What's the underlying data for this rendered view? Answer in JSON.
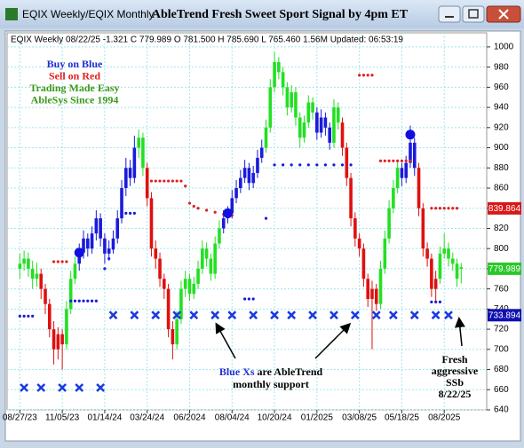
{
  "window": {
    "left_title": "EQIX Weekly/EQIX Monthly",
    "center_title": "AbleTrend Fresh Sweet Sport Signal by 4pm ET"
  },
  "chart_data": {
    "type": "candlestick",
    "info": "EQIX  Weekly 08/22/25 -1.321 C 779.989 O 781.500 H 785.690 L 765.460 1.56M Updated: 06:53:19",
    "legend_lines": [
      {
        "text": "Buy on Blue",
        "color": "#1f2fd0"
      },
      {
        "text": "Sell on Red",
        "color": "#e02020"
      },
      {
        "text": "Trading Made Easy",
        "color": "#3a9a1a"
      },
      {
        "text": "AbleSys Since 1994",
        "color": "#3a9a1a"
      }
    ],
    "annotations": {
      "support_lead": "Blue Xs",
      "support_rest": "are AbleTrend",
      "support_line2": "monthly support",
      "fresh": [
        "Fresh",
        "aggressive",
        "SSb",
        "8/22/25"
      ]
    },
    "signal_colors": {
      "b": "#1a1adb",
      "g": "#22e022",
      "r": "#e01010"
    },
    "signals": [
      "g",
      "g",
      "g",
      "g",
      "g",
      "r",
      "r",
      "r",
      "r",
      "r",
      "r",
      "g",
      "g",
      "g",
      "b",
      "b",
      "b",
      "b",
      "b",
      "b",
      "b",
      "b",
      "b",
      "b",
      "b",
      "b",
      "b",
      "b",
      "g",
      "g",
      "r",
      "r",
      "r",
      "r",
      "r",
      "r",
      "r",
      "g",
      "g",
      "g",
      "g",
      "g",
      "g",
      "g",
      "g",
      "g",
      "g",
      "g",
      "b",
      "b",
      "b",
      "b",
      "b",
      "b",
      "b",
      "b",
      "b",
      "b",
      "g",
      "g",
      "g",
      "g",
      "g",
      "g",
      "g",
      "g",
      "g",
      "g",
      "g",
      "g",
      "b",
      "b",
      "b",
      "b",
      "g",
      "g",
      "r",
      "r",
      "r",
      "r",
      "r",
      "r",
      "r",
      "r",
      "r",
      "g",
      "g",
      "g",
      "g",
      "g",
      "b",
      "b",
      "b",
      "b",
      "r",
      "r",
      "r",
      "r",
      "r",
      "g",
      "g",
      "g",
      "g",
      "g",
      "g"
    ],
    "ohlc": [
      [
        780,
        795,
        770,
        785
      ],
      [
        785,
        798,
        778,
        790
      ],
      [
        790,
        796,
        772,
        780
      ],
      [
        780,
        788,
        760,
        770
      ],
      [
        770,
        786,
        762,
        775
      ],
      [
        775,
        780,
        750,
        760
      ],
      [
        760,
        765,
        735,
        745
      ],
      [
        745,
        750,
        712,
        720
      ],
      [
        720,
        728,
        685,
        700
      ],
      [
        700,
        722,
        690,
        715
      ],
      [
        715,
        720,
        680,
        705
      ],
      [
        705,
        748,
        700,
        740
      ],
      [
        740,
        778,
        735,
        770
      ],
      [
        770,
        792,
        765,
        785
      ],
      [
        785,
        805,
        778,
        796
      ],
      [
        796,
        818,
        790,
        810
      ],
      [
        810,
        815,
        792,
        800
      ],
      [
        800,
        822,
        795,
        815
      ],
      [
        815,
        838,
        808,
        830
      ],
      [
        830,
        835,
        802,
        810
      ],
      [
        810,
        815,
        785,
        795
      ],
      [
        795,
        808,
        788,
        800
      ],
      [
        800,
        818,
        795,
        810
      ],
      [
        810,
        838,
        805,
        830
      ],
      [
        830,
        868,
        825,
        860
      ],
      [
        860,
        890,
        852,
        880
      ],
      [
        880,
        888,
        862,
        870
      ],
      [
        870,
        912,
        865,
        900
      ],
      [
        900,
        918,
        890,
        910
      ],
      [
        910,
        915,
        872,
        880
      ],
      [
        880,
        885,
        842,
        850
      ],
      [
        850,
        856,
        792,
        800
      ],
      [
        800,
        808,
        780,
        790
      ],
      [
        790,
        796,
        762,
        770
      ],
      [
        770,
        775,
        750,
        760
      ],
      [
        760,
        765,
        712,
        720
      ],
      [
        720,
        728,
        690,
        705
      ],
      [
        705,
        738,
        700,
        730
      ],
      [
        730,
        768,
        725,
        760
      ],
      [
        760,
        778,
        752,
        770
      ],
      [
        770,
        775,
        748,
        755
      ],
      [
        755,
        772,
        750,
        765
      ],
      [
        765,
        788,
        760,
        780
      ],
      [
        780,
        808,
        775,
        800
      ],
      [
        800,
        806,
        782,
        790
      ],
      [
        790,
        795,
        768,
        775
      ],
      [
        775,
        812,
        770,
        805
      ],
      [
        805,
        828,
        800,
        820
      ],
      [
        820,
        838,
        815,
        830
      ],
      [
        830,
        842,
        825,
        835
      ],
      [
        835,
        858,
        830,
        850
      ],
      [
        850,
        868,
        845,
        860
      ],
      [
        860,
        878,
        855,
        870
      ],
      [
        870,
        888,
        865,
        880
      ],
      [
        880,
        885,
        858,
        865
      ],
      [
        865,
        882,
        860,
        875
      ],
      [
        875,
        898,
        870,
        890
      ],
      [
        890,
        908,
        885,
        900
      ],
      [
        900,
        928,
        895,
        920
      ],
      [
        920,
        968,
        915,
        960
      ],
      [
        960,
        995,
        955,
        985
      ],
      [
        985,
        990,
        968,
        975
      ],
      [
        975,
        980,
        952,
        960
      ],
      [
        960,
        965,
        932,
        940
      ],
      [
        940,
        962,
        935,
        955
      ],
      [
        955,
        960,
        922,
        930
      ],
      [
        930,
        935,
        900,
        910
      ],
      [
        910,
        932,
        905,
        925
      ],
      [
        925,
        952,
        920,
        945
      ],
      [
        945,
        950,
        928,
        935
      ],
      [
        935,
        940,
        908,
        915
      ],
      [
        915,
        938,
        910,
        930
      ],
      [
        930,
        935,
        912,
        920
      ],
      [
        920,
        925,
        898,
        905
      ],
      [
        905,
        948,
        900,
        940
      ],
      [
        940,
        945,
        918,
        925
      ],
      [
        925,
        930,
        892,
        900
      ],
      [
        900,
        905,
        862,
        870
      ],
      [
        870,
        875,
        822,
        830
      ],
      [
        830,
        836,
        802,
        810
      ],
      [
        810,
        815,
        792,
        800
      ],
      [
        800,
        805,
        762,
        770
      ],
      [
        770,
        775,
        742,
        750
      ],
      [
        750,
        768,
        700,
        760
      ],
      [
        760,
        765,
        738,
        745
      ],
      [
        745,
        788,
        740,
        780
      ],
      [
        780,
        818,
        775,
        810
      ],
      [
        810,
        848,
        805,
        840
      ],
      [
        840,
        868,
        835,
        860
      ],
      [
        860,
        888,
        855,
        880
      ],
      [
        880,
        885,
        862,
        870
      ],
      [
        870,
        892,
        865,
        885
      ],
      [
        885,
        922,
        880,
        905
      ],
      [
        905,
        910,
        872,
        880
      ],
      [
        880,
        885,
        832,
        840
      ],
      [
        840,
        845,
        792,
        800
      ],
      [
        800,
        806,
        782,
        790
      ],
      [
        790,
        795,
        752,
        760
      ],
      [
        760,
        778,
        748,
        770
      ],
      [
        770,
        802,
        765,
        795
      ],
      [
        795,
        815,
        790,
        800
      ],
      [
        800,
        806,
        782,
        790
      ],
      [
        790,
        796,
        778,
        785
      ],
      [
        785,
        790,
        762,
        770
      ],
      [
        781.5,
        785.69,
        765.46,
        779.989
      ]
    ],
    "sell_stops": {
      "color": "#e02020",
      "x": [
        8,
        9,
        10,
        11,
        31,
        32,
        33,
        34,
        35,
        36,
        37,
        38,
        39,
        40,
        41,
        42,
        44,
        46,
        48,
        50,
        80,
        81,
        82,
        83,
        85,
        86,
        87,
        88,
        89,
        90,
        91,
        92,
        97,
        98,
        99,
        100,
        101,
        102,
        103
      ],
      "values": [
        787,
        787,
        787,
        787,
        867,
        867,
        867,
        867,
        867,
        867,
        867,
        867,
        862,
        845,
        842,
        840,
        838,
        836,
        834,
        833,
        972,
        972,
        972,
        972,
        887,
        887,
        887,
        887,
        887,
        887,
        887,
        887,
        840,
        840,
        840,
        840,
        840,
        840,
        840
      ]
    },
    "buy_stops": {
      "color": "#1a1adb",
      "x": [
        0,
        1,
        2,
        3,
        12,
        13,
        14,
        15,
        16,
        17,
        18,
        20,
        21,
        22,
        23,
        24,
        25,
        26,
        27,
        53,
        54,
        55,
        58,
        60,
        62,
        64,
        66,
        68,
        70,
        72,
        74,
        76,
        78,
        97,
        98,
        99
      ],
      "values": [
        733,
        733,
        733,
        733,
        748,
        748,
        748,
        748,
        748,
        748,
        748,
        780,
        790,
        800,
        820,
        835,
        835,
        835,
        835,
        750,
        750,
        750,
        830,
        883,
        883,
        883,
        883,
        883,
        883,
        883,
        883,
        883,
        883,
        747,
        747,
        747
      ]
    },
    "signal_dots": {
      "color": "#1010e0",
      "x": [
        14,
        49,
        92
      ],
      "values": [
        796,
        835,
        913
      ]
    },
    "monthly_support": {
      "color": "#1a3ae0",
      "x": [
        1,
        5,
        10,
        14,
        19,
        22,
        27,
        32,
        37,
        41,
        46,
        50,
        55,
        60,
        64,
        69,
        74,
        79,
        84,
        88,
        93,
        98,
        101
      ],
      "values": [
        662,
        662,
        662,
        662,
        662,
        734,
        734,
        734,
        734,
        734,
        734,
        734,
        734,
        734,
        734,
        734,
        734,
        734,
        734,
        734,
        734,
        734,
        734
      ]
    },
    "price_markers": [
      {
        "value": 839.864,
        "color": "#d81818"
      },
      {
        "value": 779.989,
        "color": "#2ac82a"
      },
      {
        "value": 733.894,
        "color": "#1010b0"
      }
    ],
    "xlim": [
      -3,
      110
    ],
    "ylim": [
      640,
      1014
    ],
    "xticks": [
      {
        "value": 0,
        "label": "08/27/23"
      },
      {
        "value": 10,
        "label": "11/05/23"
      },
      {
        "value": 20,
        "label": "01/14/24"
      },
      {
        "value": 30,
        "label": "03/24/24"
      },
      {
        "value": 40,
        "label": "06/2024"
      },
      {
        "value": 50,
        "label": "08/04/24"
      },
      {
        "value": 60,
        "label": "10/20/24"
      },
      {
        "value": 70,
        "label": "01/2025"
      },
      {
        "value": 80,
        "label": "03/08/25"
      },
      {
        "value": 90,
        "label": "05/18/25"
      },
      {
        "value": 100,
        "label": "08/2025"
      }
    ],
    "yticks": [
      640,
      660,
      680,
      700,
      720,
      740,
      760,
      780,
      800,
      820,
      840,
      860,
      880,
      900,
      920,
      940,
      960,
      980,
      1000
    ],
    "grid": true
  }
}
